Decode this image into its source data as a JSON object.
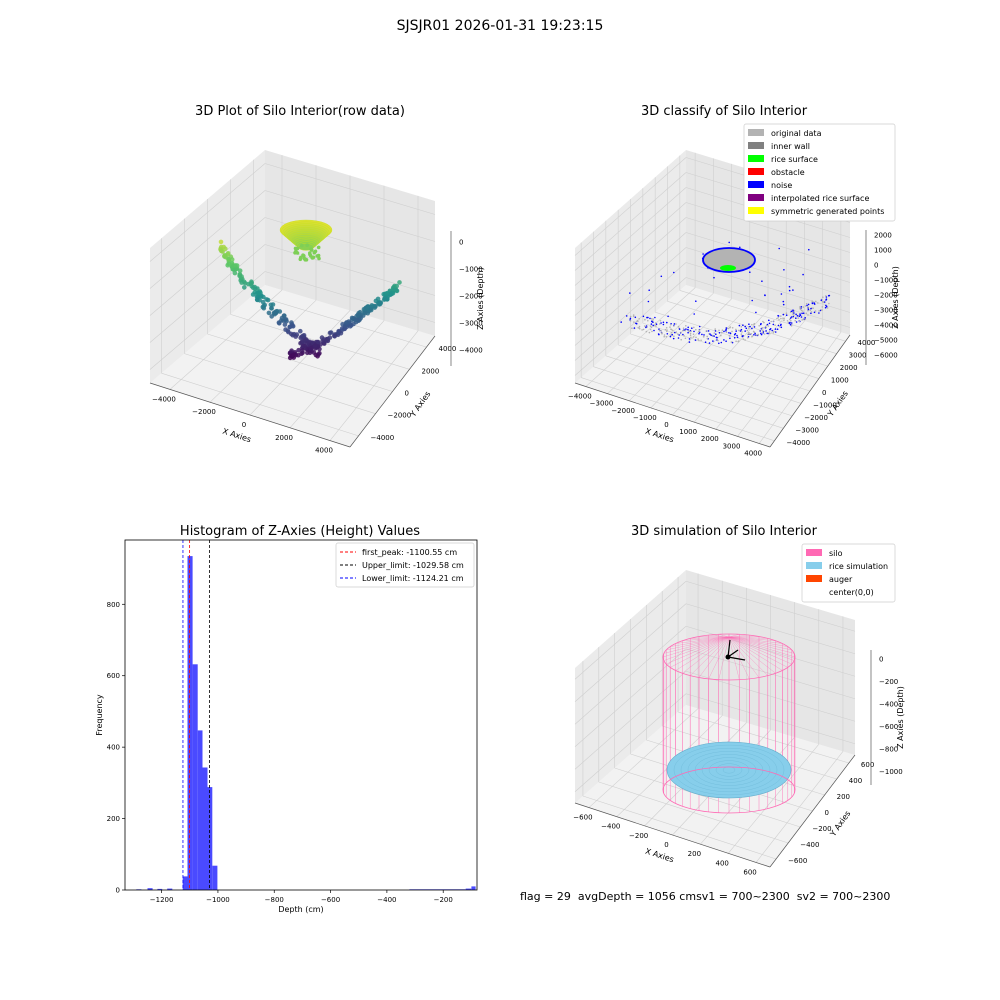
{
  "figure": {
    "suptitle": "SJSJR01 2026-01-31 19:23:15"
  },
  "footer": {
    "flag": "flag = 29",
    "avg": "avgDepth = 1056 cm",
    "sv1": "sv1 = 700~2300",
    "sv2": "sv2 = 700~2300"
  },
  "chart_data": [
    {
      "type": "scatter",
      "subtype": "3d",
      "title": "3D Plot of Silo Interior(row data)",
      "xlabel": "X Axies",
      "ylabel": "Y Axies",
      "zlabel": "Z Axies (Depth)",
      "x_ticks": [
        "−4000",
        "−2000",
        "0",
        "2000",
        "4000"
      ],
      "y_ticks": [
        "−4000",
        "−2000",
        "0",
        "2000",
        "4000"
      ],
      "z_ticks": [
        "−4000",
        "−3000",
        "−2000",
        "−1000",
        "0"
      ],
      "colormap": [
        "#440154",
        "#3b528b",
        "#21918c",
        "#5ec962",
        "#fde725"
      ]
    },
    {
      "type": "scatter",
      "subtype": "3d",
      "title": "3D classify of Silo Interior",
      "xlabel": "X Axies",
      "ylabel": "Y Axies",
      "zlabel": "Z Axies (Depth)",
      "x_ticks": [
        "−4000",
        "−3000",
        "−2000",
        "−1000",
        "0",
        "1000",
        "2000",
        "3000",
        "4000"
      ],
      "y_ticks": [
        "−4000",
        "−3000",
        "−2000",
        "−1000",
        "0",
        "1000",
        "2000",
        "3000",
        "4000"
      ],
      "z_ticks": [
        "−6000",
        "−5000",
        "−4000",
        "−3000",
        "−2000",
        "−1000",
        "0",
        "1000",
        "2000"
      ],
      "legend": [
        {
          "label": "original data",
          "color": "#b3b3b3"
        },
        {
          "label": "inner wall",
          "color": "#808080"
        },
        {
          "label": "rice surface",
          "color": "#00ff00"
        },
        {
          "label": "obstacle",
          "color": "#ff0000"
        },
        {
          "label": "noise",
          "color": "#0000ff"
        },
        {
          "label": "interpolated rice surface",
          "color": "#800080"
        },
        {
          "label": "symmetric generated points",
          "color": "#ffff00"
        }
      ]
    },
    {
      "type": "bar",
      "subtype": "histogram",
      "title": "Histogram of Z-Axies (Height) Values",
      "xlabel": "Depth (cm)",
      "ylabel": "Frequency",
      "xlim": [
        -1330,
        -80
      ],
      "ylim": [
        0,
        980
      ],
      "x_ticks": [
        -1200,
        -1000,
        -800,
        -600,
        -400,
        -200
      ],
      "x_tick_labels": [
        "−1200",
        "−1000",
        "−800",
        "−600",
        "−400",
        "−200"
      ],
      "y_ticks": [
        0,
        200,
        400,
        600,
        800
      ],
      "bar_color": "#4a4aff",
      "bins": [
        {
          "x0": -1290,
          "x1": -1272,
          "count": 2
        },
        {
          "x0": -1250,
          "x1": -1232,
          "count": 5
        },
        {
          "x0": -1215,
          "x1": -1198,
          "count": 3
        },
        {
          "x0": -1180,
          "x1": -1162,
          "count": 4
        },
        {
          "x0": -1125,
          "x1": -1108,
          "count": 38
        },
        {
          "x0": -1108,
          "x1": -1090,
          "count": 935
        },
        {
          "x0": -1090,
          "x1": -1072,
          "count": 632
        },
        {
          "x0": -1072,
          "x1": -1055,
          "count": 447
        },
        {
          "x0": -1055,
          "x1": -1037,
          "count": 343
        },
        {
          "x0": -1037,
          "x1": -1020,
          "count": 288
        },
        {
          "x0": -1020,
          "x1": -1002,
          "count": 68
        },
        {
          "x0": -320,
          "x1": -120,
          "count": 2
        },
        {
          "x0": -120,
          "x1": -100,
          "count": 4
        },
        {
          "x0": -100,
          "x1": -85,
          "count": 10
        }
      ],
      "vlines": [
        {
          "label": "first_peak: -1100.55 cm",
          "x": -1100.55,
          "color": "#ff0000"
        },
        {
          "label": "Upper_limit: -1029.58 cm",
          "x": -1029.58,
          "color": "#000000"
        },
        {
          "label": "Lower_limit: -1124.21 cm",
          "x": -1124.21,
          "color": "#0000ff"
        }
      ]
    },
    {
      "type": "scatter",
      "subtype": "3d-wireframe",
      "title": "3D simulation of Silo Interior",
      "xlabel": "X Axies",
      "ylabel": "Y Axies",
      "zlabel": "Z Axies (Depth)",
      "x_ticks": [
        "−600",
        "−400",
        "−200",
        "0",
        "200",
        "400",
        "600"
      ],
      "y_ticks": [
        "−600",
        "−400",
        "−200",
        "0",
        "200",
        "400",
        "600"
      ],
      "z_ticks": [
        "−1000",
        "−800",
        "−600",
        "−400",
        "−200",
        "0"
      ],
      "legend": [
        {
          "label": "silo",
          "color": "#ff69b4"
        },
        {
          "label": "rice simulation",
          "color": "#87ceeb"
        },
        {
          "label": "auger",
          "color": "#ff4500"
        },
        {
          "label": "center(0,0)",
          "color": "#ffffff"
        }
      ]
    }
  ]
}
